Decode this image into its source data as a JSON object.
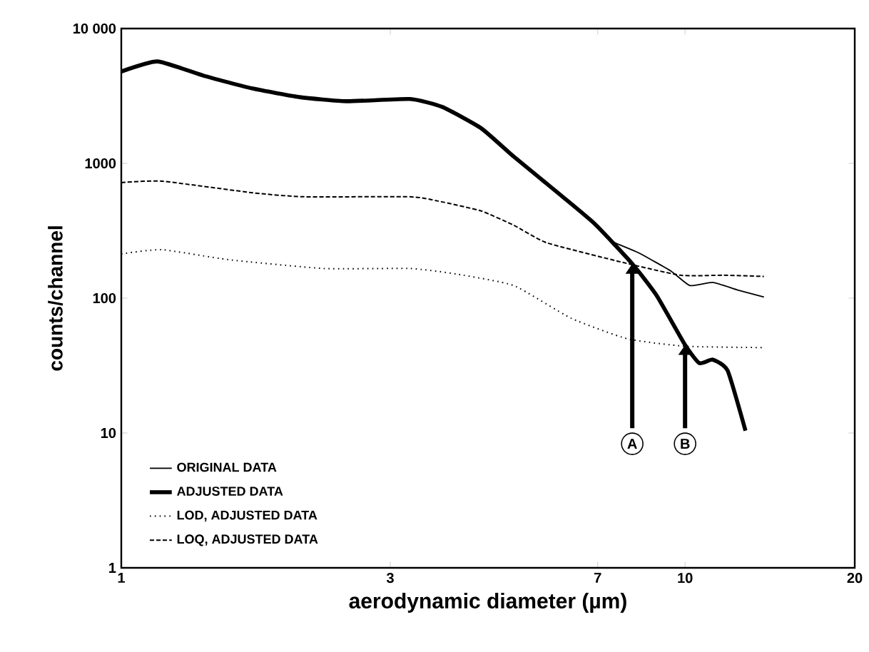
{
  "chart_data": {
    "type": "line",
    "xlabel": "aerodynamic diameter (µm)",
    "ylabel": "counts/channel",
    "log": "xy",
    "xlim": [
      1,
      20
    ],
    "ylim": [
      1,
      10000
    ],
    "xticks": [
      1,
      3,
      7,
      10,
      20
    ],
    "yticks": [
      1,
      10,
      100,
      1000,
      {
        "value": 10000,
        "label": "10 000"
      }
    ],
    "legend": "bottom left",
    "series": [
      {
        "name": "ORIGINAL  DATA",
        "color": "#000000",
        "line_style": "solid",
        "x": [
          1,
          1.16,
          1.4,
          1.71,
          2.07,
          2.51,
          3.25,
          3.71,
          4.35,
          4.97,
          6.03,
          6.92,
          7.34,
          8.25,
          9.44,
          10.2,
          11.2,
          12.4,
          13.8
        ],
        "values": [
          4800,
          5700,
          4470,
          3590,
          3100,
          2890,
          3000,
          2620,
          1820,
          1120,
          577,
          355,
          270,
          218,
          159,
          124,
          131,
          115,
          102
        ]
      },
      {
        "name": "ADJUSTED DATA",
        "color": "#000000",
        "line_style": "solid",
        "x": [
          1,
          1.16,
          1.4,
          1.71,
          2.07,
          2.51,
          3.25,
          3.71,
          4.35,
          4.97,
          6.03,
          6.92,
          8.06,
          8.9,
          10,
          10.6,
          11.2,
          11.9,
          12.8
        ],
        "values": [
          4800,
          5700,
          4470,
          3590,
          3100,
          2890,
          3000,
          2620,
          1820,
          1120,
          577,
          355,
          180,
          105,
          45,
          33,
          35,
          29,
          10.4
        ]
      },
      {
        "name": "LOD, ADJUSTED DATA",
        "color": "#000000",
        "line_style": "dotted",
        "x": [
          1,
          1.18,
          1.55,
          2.29,
          3.25,
          3.93,
          4.97,
          6.28,
          7.9,
          10,
          13.8
        ],
        "values": [
          213,
          229,
          193,
          166,
          166,
          151,
          124,
          71,
          50,
          44,
          43
        ]
      },
      {
        "name": "LOQ, ADJUSTED DATA",
        "color": "#000000",
        "line_style": "dashed",
        "x": [
          1,
          1.18,
          1.71,
          2.11,
          3.25,
          3.65,
          4.35,
          4.97,
          5.68,
          7.6,
          9.8,
          11.7,
          13.8
        ],
        "values": [
          720,
          738,
          605,
          565,
          565,
          525,
          443,
          347,
          258,
          188,
          148,
          148,
          145
        ]
      }
    ],
    "annotations": [
      {
        "text": "A",
        "x": 8.06,
        "y": 180
      },
      {
        "text": "B",
        "x": 10,
        "y": 45
      }
    ]
  }
}
